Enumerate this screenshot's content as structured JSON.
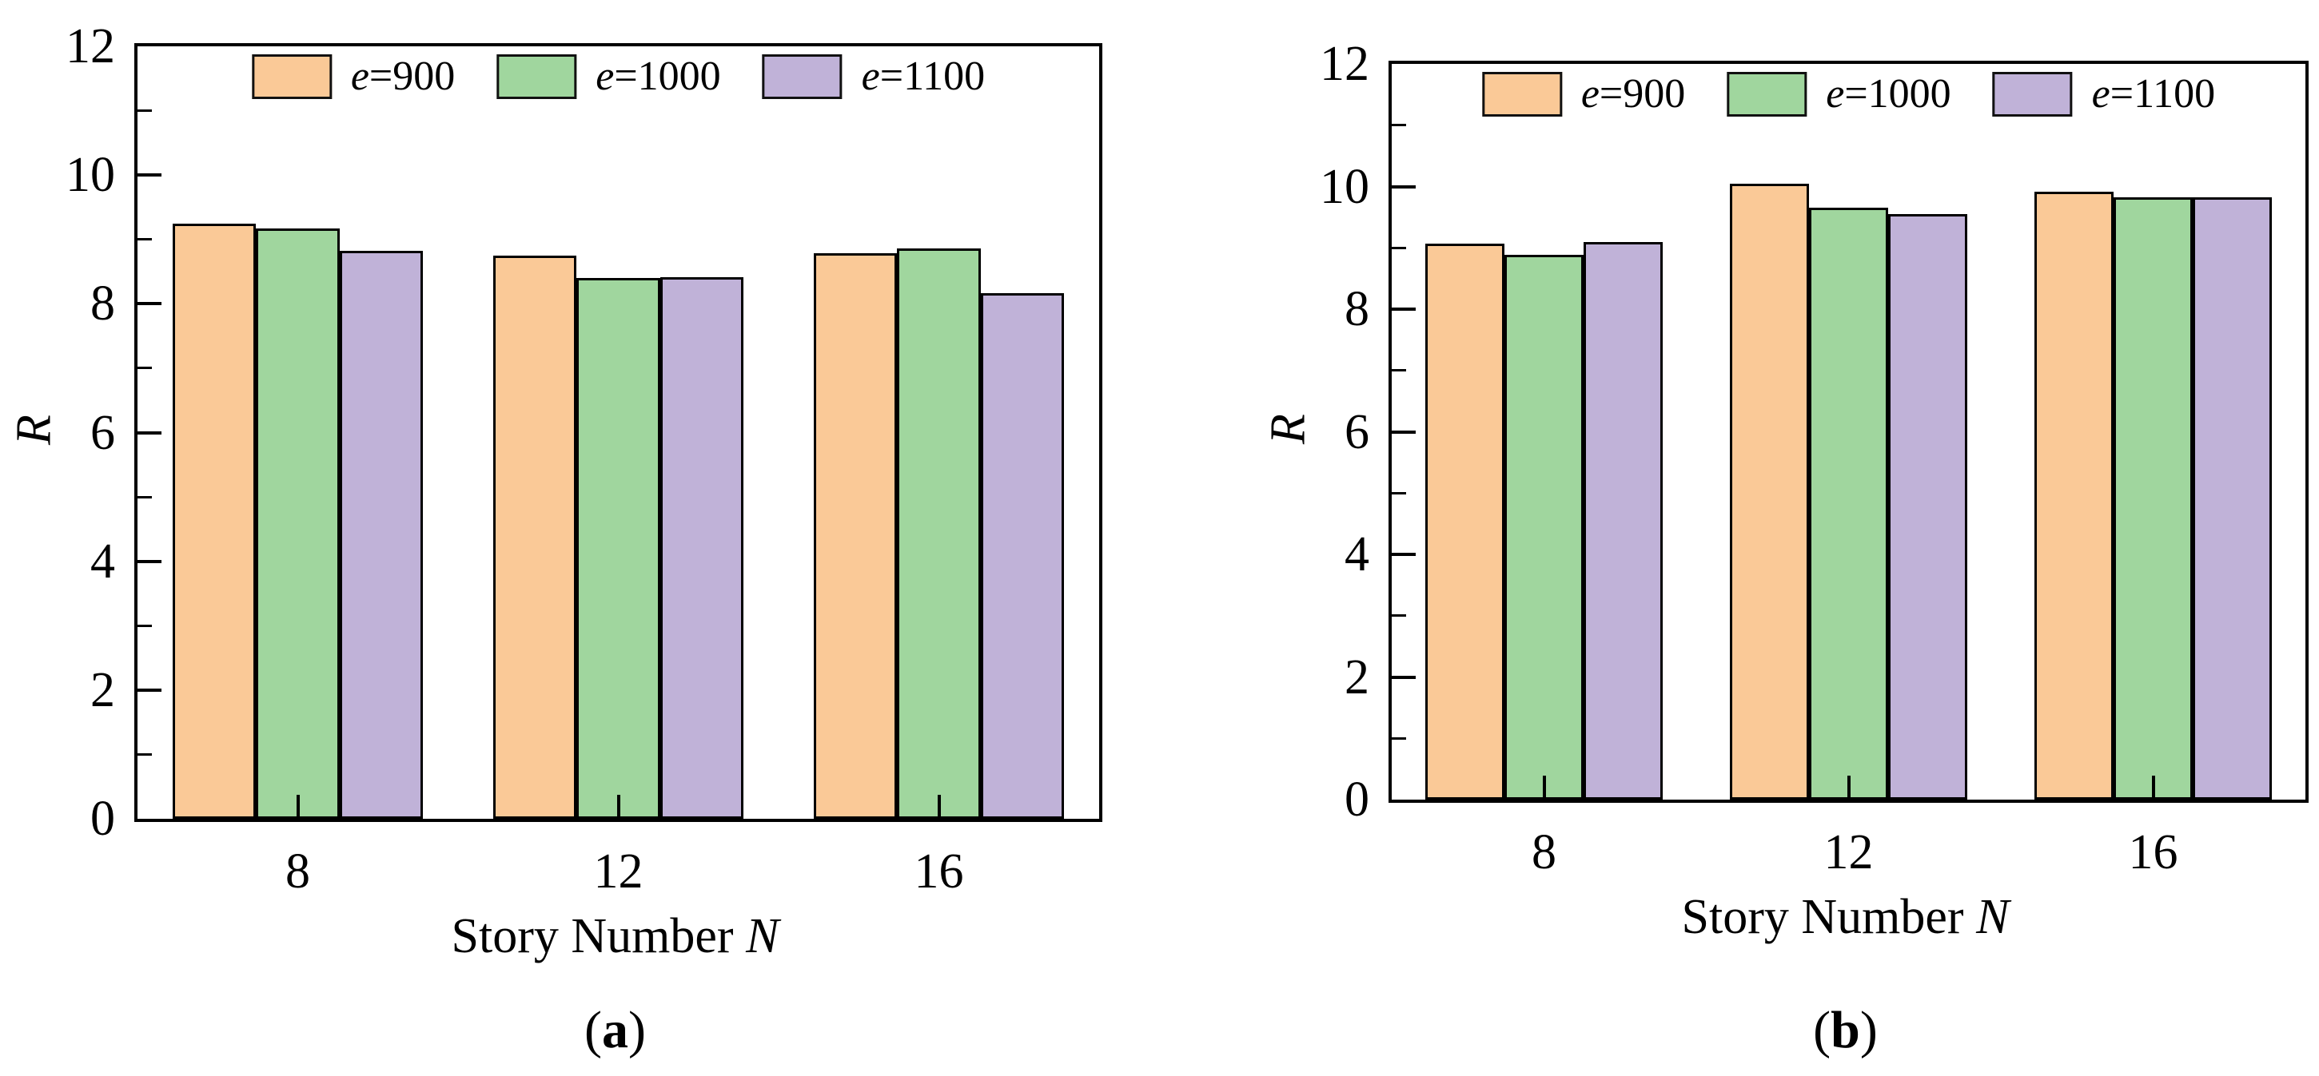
{
  "figure": {
    "description_visible_text_only": "Two grouped bar charts comparing R versus Story Number N for three e values",
    "colors": {
      "series_e900": "#FAC997",
      "series_e1000": "#A0D69E",
      "series_e1100": "#C0B2D8",
      "bar_edge": "#000000",
      "axis": "#000000",
      "background": "#ffffff"
    }
  },
  "chart_data": [
    {
      "type": "bar",
      "title": "(a)",
      "categories": [
        "8",
        "12",
        "16"
      ],
      "series": [
        {
          "name": "e=900",
          "color": "#FAC997",
          "values": [
            9.25,
            8.75,
            8.79
          ]
        },
        {
          "name": "e=1000",
          "color": "#A0D69E",
          "values": [
            9.17,
            8.4,
            8.86
          ]
        },
        {
          "name": "e=1100",
          "color": "#C0B2D8",
          "values": [
            8.82,
            8.41,
            8.16
          ]
        }
      ],
      "xlabel": "Story Number N",
      "ylabel": "R",
      "ylim": [
        0,
        12
      ],
      "yticks_major": [
        0,
        2,
        4,
        6,
        8,
        10,
        12
      ],
      "yticks_minor": [
        1,
        3,
        5,
        7,
        9,
        11
      ],
      "legend_position": "top-center-inside",
      "grid": false
    },
    {
      "type": "bar",
      "title": "(b)",
      "categories": [
        "8",
        "12",
        "16"
      ],
      "series": [
        {
          "name": "e=900",
          "color": "#FAC997",
          "values": [
            9.07,
            10.04,
            9.91
          ]
        },
        {
          "name": "e=1000",
          "color": "#A0D69E",
          "values": [
            8.88,
            9.66,
            9.83
          ]
        },
        {
          "name": "e=1100",
          "color": "#C0B2D8",
          "values": [
            9.1,
            9.55,
            9.83
          ]
        }
      ],
      "xlabel": "Story Number N",
      "ylabel": "R",
      "ylim": [
        0,
        12
      ],
      "yticks_major": [
        0,
        2,
        4,
        6,
        8,
        10,
        12
      ],
      "yticks_minor": [
        1,
        3,
        5,
        7,
        9,
        11
      ],
      "legend_position": "top-center-inside",
      "grid": false
    }
  ]
}
